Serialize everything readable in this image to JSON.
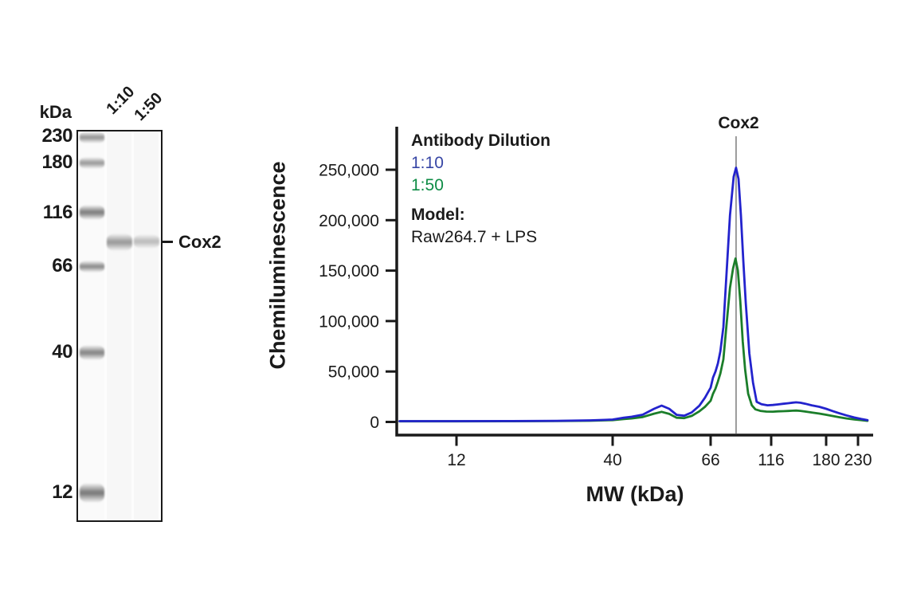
{
  "colors": {
    "axis": "#1a1a1a",
    "trace_1_10": "#2323cd",
    "trace_1_50": "#1b7e2a",
    "legend_1_10": "#3746a5",
    "legend_1_50": "#0e8c45",
    "marker_line": "#9a9a9a",
    "band_gray": "#444444"
  },
  "blot": {
    "unit_label": "kDa",
    "markers": [
      {
        "label": "230"
      },
      {
        "label": "180"
      },
      {
        "label": "116"
      },
      {
        "label": "66"
      },
      {
        "label": "40"
      },
      {
        "label": "12"
      }
    ],
    "lane_labels": [
      "1:10",
      "1:50"
    ],
    "target_label": "Cox2",
    "bands": [
      {
        "lane": "1:10",
        "target": "Cox2",
        "intensity": "strong"
      },
      {
        "lane": "1:50",
        "target": "Cox2",
        "intensity": "weak"
      }
    ]
  },
  "chart_data": {
    "type": "line",
    "xlabel": "MW (kDa)",
    "ylabel": "Chemiluminescence",
    "x_scale": "nonlinear-migration",
    "x_ticks": [
      {
        "mw": 12,
        "label": "12"
      },
      {
        "mw": 40,
        "label": "40"
      },
      {
        "mw": 66,
        "label": "66"
      },
      {
        "mw": 116,
        "label": "116"
      },
      {
        "mw": 180,
        "label": "180"
      },
      {
        "mw": 230,
        "label": "230"
      }
    ],
    "y_ticks": [
      {
        "value": 0,
        "label": "0"
      },
      {
        "value": 50000,
        "label": "50,000"
      },
      {
        "value": 100000,
        "label": "100,000"
      },
      {
        "value": 150000,
        "label": "150,000"
      },
      {
        "value": 200000,
        "label": "200,000"
      },
      {
        "value": 250000,
        "label": "250,000"
      }
    ],
    "ylim": [
      0,
      280000
    ],
    "annotation": {
      "label": "Cox2",
      "marker_mw": 87
    },
    "legend": {
      "title": "Antibody Dilution",
      "entries": [
        {
          "label": "1:10",
          "color": "#3746a5"
        },
        {
          "label": "1:50",
          "color": "#0e8c45"
        }
      ]
    },
    "info": {
      "model_label": "Model:",
      "model_value": "Raw264.7 + LPS"
    },
    "series": [
      {
        "name": "1:10",
        "color": "#2323cd",
        "peak": {
          "mw": 87,
          "value": 252000
        },
        "points": [
          [
            2,
            800
          ],
          [
            12,
            800
          ],
          [
            22,
            900
          ],
          [
            30,
            1100
          ],
          [
            36,
            1600
          ],
          [
            40,
            2400
          ],
          [
            43,
            4300
          ],
          [
            45,
            5100
          ],
          [
            48,
            7200
          ],
          [
            51,
            13000
          ],
          [
            53,
            16200
          ],
          [
            55,
            13000
          ],
          [
            57,
            7000
          ],
          [
            59,
            6200
          ],
          [
            61,
            9500
          ],
          [
            63,
            16000
          ],
          [
            64.5,
            24000
          ],
          [
            66,
            34000
          ],
          [
            68,
            44000
          ],
          [
            70,
            50000
          ],
          [
            72,
            58000
          ],
          [
            74,
            70000
          ],
          [
            76.5,
            94000
          ],
          [
            79,
            145000
          ],
          [
            82,
            205000
          ],
          [
            85,
            243000
          ],
          [
            87,
            252000
          ],
          [
            89,
            241000
          ],
          [
            91,
            205000
          ],
          [
            93,
            160000
          ],
          [
            95,
            118000
          ],
          [
            98,
            68000
          ],
          [
            101,
            39000
          ],
          [
            104,
            20000
          ],
          [
            108,
            17500
          ],
          [
            113,
            16500
          ],
          [
            118,
            16800
          ],
          [
            124,
            17400
          ],
          [
            130,
            18000
          ],
          [
            136,
            18600
          ],
          [
            141,
            19100
          ],
          [
            145,
            19400
          ],
          [
            150,
            19000
          ],
          [
            156,
            18000
          ],
          [
            163,
            16500
          ],
          [
            172,
            15000
          ],
          [
            180,
            13000
          ],
          [
            190,
            10800
          ],
          [
            200,
            8800
          ],
          [
            212,
            6500
          ],
          [
            224,
            4400
          ],
          [
            235,
            2900
          ],
          [
            245,
            1700
          ]
        ]
      },
      {
        "name": "1:50",
        "color": "#1b7e2a",
        "peak": {
          "mw": 86.5,
          "value": 162000
        },
        "points": [
          [
            2,
            600
          ],
          [
            12,
            600
          ],
          [
            22,
            700
          ],
          [
            30,
            900
          ],
          [
            36,
            1200
          ],
          [
            40,
            1800
          ],
          [
            43,
            2900
          ],
          [
            45,
            3500
          ],
          [
            48,
            4900
          ],
          [
            51,
            8200
          ],
          [
            53,
            10000
          ],
          [
            55,
            8000
          ],
          [
            57,
            4200
          ],
          [
            59,
            3800
          ],
          [
            61,
            6000
          ],
          [
            63,
            10500
          ],
          [
            64.5,
            15000
          ],
          [
            66,
            21000
          ],
          [
            68,
            28000
          ],
          [
            70,
            33000
          ],
          [
            72,
            40000
          ],
          [
            74,
            48000
          ],
          [
            76.5,
            62000
          ],
          [
            79,
            95000
          ],
          [
            82,
            133000
          ],
          [
            84.5,
            152000
          ],
          [
            86.5,
            162000
          ],
          [
            88.5,
            150000
          ],
          [
            90.5,
            120000
          ],
          [
            92.5,
            80000
          ],
          [
            94.5,
            52000
          ],
          [
            97,
            28000
          ],
          [
            100,
            16500
          ],
          [
            103,
            12500
          ],
          [
            107,
            11000
          ],
          [
            112,
            10300
          ],
          [
            118,
            10200
          ],
          [
            124,
            10500
          ],
          [
            130,
            10700
          ],
          [
            136,
            10900
          ],
          [
            141,
            11100
          ],
          [
            145,
            11300
          ],
          [
            150,
            11000
          ],
          [
            156,
            10300
          ],
          [
            163,
            9400
          ],
          [
            172,
            8300
          ],
          [
            180,
            7100
          ],
          [
            190,
            5900
          ],
          [
            200,
            4700
          ],
          [
            212,
            3500
          ],
          [
            224,
            2500
          ],
          [
            235,
            1800
          ],
          [
            245,
            1100
          ]
        ]
      }
    ]
  }
}
